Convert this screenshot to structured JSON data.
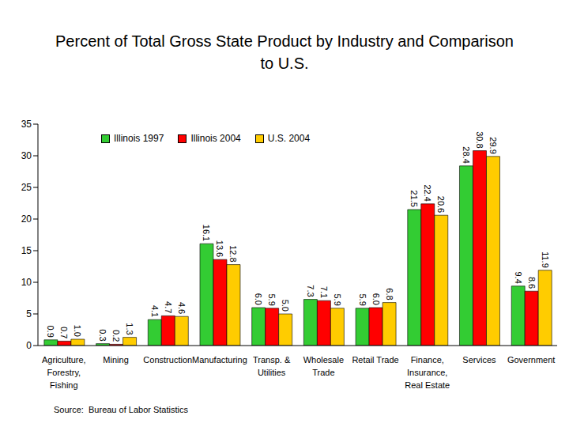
{
  "chart_data": {
    "type": "bar",
    "title": "Percent of Total Gross State Product by Industry and Comparison to U.S.",
    "annotations": [
      "Source:  Bureau of Labor Statistics"
    ],
    "categories": [
      "Agriculture, Forestry, Fishing",
      "Mining",
      "Construction",
      "Manufacturing",
      "Transp. & Utilities",
      "Wholesale Trade",
      "Retail Trade",
      "Finance, Insurance, Real Estate",
      "Services",
      "Government"
    ],
    "series": [
      {
        "name": "Illinois 1997",
        "color": "#33cc33",
        "values": [
          0.9,
          0.3,
          4.1,
          16.1,
          6.0,
          7.3,
          5.9,
          21.5,
          28.4,
          9.4
        ],
        "value_labels": [
          "0.9",
          "0.3",
          "4.1",
          "16.1",
          "6.0",
          "7.3",
          "5.9",
          "21.5",
          "28.4",
          "9.4"
        ]
      },
      {
        "name": "Illinois 2004",
        "color": "#ff0000",
        "values": [
          0.7,
          0.2,
          4.7,
          13.6,
          5.9,
          7.1,
          6.0,
          22.4,
          30.8,
          8.6
        ],
        "value_labels": [
          "0.7",
          "0.2",
          "4.7",
          "13.6",
          "5.9",
          "7.1",
          "6.0",
          "22.4",
          "30.8",
          "8.6"
        ]
      },
      {
        "name": "U.S. 2004",
        "color": "#ffcc00",
        "values": [
          1.0,
          1.3,
          4.6,
          12.8,
          5.0,
          5.9,
          6.8,
          20.6,
          29.9,
          11.9
        ],
        "value_labels": [
          "1.0",
          "1.3",
          "4.6",
          "12.8",
          "5.0",
          "5.9",
          "6.8",
          "20.6",
          "29.9",
          "11.9"
        ]
      }
    ],
    "ylim": [
      0,
      35
    ],
    "yticks": [
      0,
      5,
      10,
      15,
      20,
      25,
      30,
      35
    ],
    "grid": false,
    "legend": "top",
    "data_labels": true
  }
}
